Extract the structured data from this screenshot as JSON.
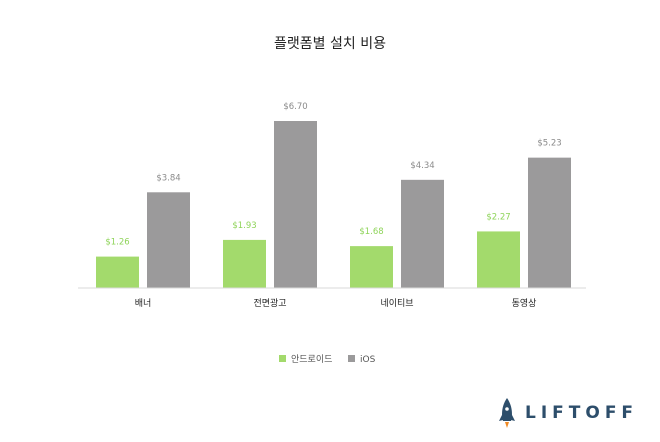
{
  "chart_data": {
    "type": "bar",
    "title": "플랫폼별 설치 비용",
    "categories": [
      "배너",
      "전면광고",
      "네이티브",
      "동영상"
    ],
    "series": [
      {
        "name": "안드로이드",
        "color": "#a3da6c",
        "label_color": "#8fd45a",
        "values": [
          1.26,
          1.93,
          1.68,
          2.27
        ],
        "labels": [
          "$1.26",
          "$1.93",
          "$1.68",
          "$2.27"
        ]
      },
      {
        "name": "iOS",
        "color": "#9b9a9b",
        "label_color": "#8a8a8a",
        "values": [
          3.84,
          6.7,
          4.34,
          5.23
        ],
        "labels": [
          "$3.84",
          "$6.70",
          "$4.34",
          "$5.23"
        ]
      }
    ],
    "ylim": [
      0,
      6.7
    ],
    "grid": false,
    "legend_position": "bottom-center"
  },
  "branding": {
    "logo_text": "LIFTOFF",
    "logo_icon": "rocket-icon",
    "logo_color": "#2d4e6b"
  }
}
